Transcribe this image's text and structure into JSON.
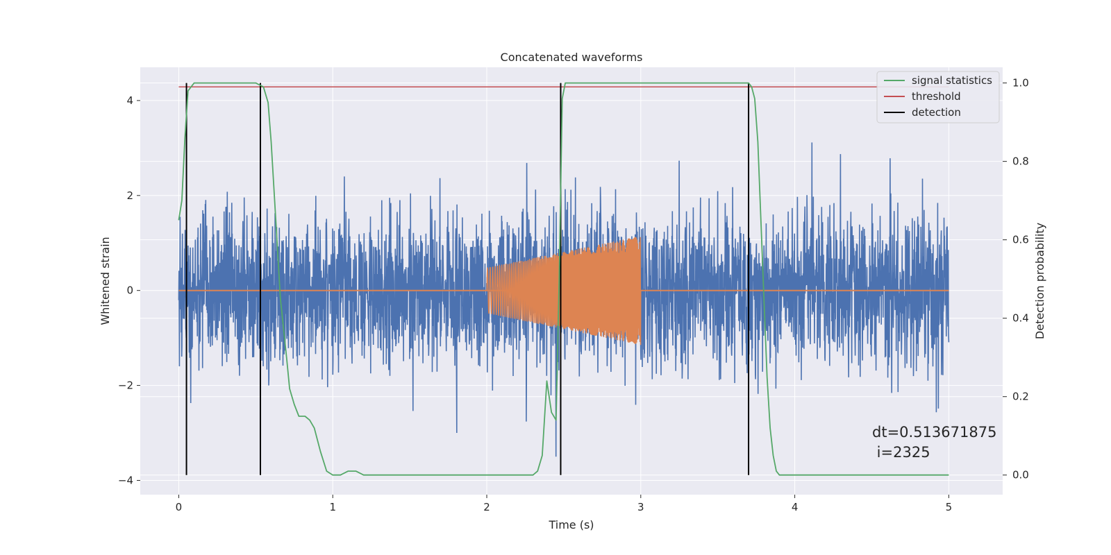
{
  "chart_data": {
    "type": "line",
    "title": "Concatenated waveforms",
    "xlabel": "Time (s)",
    "ylabel": "Whitened strain",
    "y2label": "Detection probability",
    "xlim": [
      -0.25,
      5.35
    ],
    "ylim": [
      -4.3,
      4.7
    ],
    "y2lim": [
      -0.05,
      1.04
    ],
    "x_ticks": [
      0,
      1,
      2,
      3,
      4,
      5
    ],
    "y_ticks": [
      -4,
      -2,
      0,
      2,
      4
    ],
    "y2_ticks": [
      0.0,
      0.2,
      0.4,
      0.6,
      0.8,
      1.0
    ],
    "x_tick_labels": [
      "0",
      "1",
      "2",
      "3",
      "4",
      "5"
    ],
    "y_tick_labels": [
      "−4",
      "−2",
      "0",
      "2",
      "4"
    ],
    "y2_tick_labels": [
      "0.0",
      "0.2",
      "0.4",
      "0.6",
      "0.8",
      "1.0"
    ],
    "grid": true,
    "legend_position": "top-right",
    "colors": {
      "noise": "#4c72b0",
      "injection": "#dd8452",
      "signal_statistics": "#55a868",
      "threshold": "#c44e52",
      "detection": "#000000",
      "background": "#eaeaf2",
      "grid": "#ffffff"
    },
    "series": [
      {
        "name": "signal statistics",
        "axis": "right",
        "x": [
          0.0,
          0.02,
          0.04,
          0.06,
          0.1,
          0.15,
          0.3,
          0.5,
          0.55,
          0.58,
          0.6,
          0.63,
          0.66,
          0.7,
          0.72,
          0.75,
          0.78,
          0.82,
          0.85,
          0.88,
          0.92,
          0.96,
          1.0,
          1.05,
          1.1,
          1.15,
          1.2,
          1.3,
          1.5,
          2.0,
          2.3,
          2.33,
          2.36,
          2.39,
          2.42,
          2.45,
          2.47,
          2.49,
          2.51,
          2.53,
          2.55,
          2.7,
          3.0,
          3.4,
          3.7,
          3.72,
          3.74,
          3.76,
          3.78,
          3.8,
          3.82,
          3.84,
          3.86,
          3.88,
          3.9,
          4.0,
          4.3,
          4.6,
          5.0
        ],
        "y": [
          0.65,
          0.7,
          0.86,
          0.98,
          1.0,
          1.0,
          1.0,
          1.0,
          0.99,
          0.95,
          0.85,
          0.65,
          0.45,
          0.3,
          0.22,
          0.18,
          0.15,
          0.15,
          0.14,
          0.12,
          0.06,
          0.01,
          0.0,
          0.0,
          0.01,
          0.01,
          0.0,
          0.0,
          0.0,
          0.0,
          0.0,
          0.01,
          0.05,
          0.24,
          0.16,
          0.14,
          0.5,
          0.96,
          1.0,
          1.0,
          1.0,
          1.0,
          1.0,
          1.0,
          1.0,
          0.99,
          0.96,
          0.85,
          0.65,
          0.45,
          0.25,
          0.12,
          0.05,
          0.01,
          0.0,
          0.0,
          0.0,
          0.0,
          0.0
        ]
      },
      {
        "name": "threshold",
        "axis": "right",
        "x": [
          0.0,
          5.0
        ],
        "y": [
          0.99,
          0.99
        ]
      },
      {
        "name": "detection",
        "axis": "right",
        "x": [
          0.05,
          0.53,
          2.48,
          3.7
        ],
        "y_range": [
          0.0,
          1.0
        ]
      }
    ],
    "noise_envelope": {
      "x_range": [
        0.0,
        5.0
      ],
      "y_range": [
        -3.5,
        3.4
      ]
    },
    "injection": {
      "x_range": [
        2.0,
        3.0
      ],
      "amplitude_start": 0.48,
      "amplitude_end": 1.15
    },
    "annotation": {
      "line1": "dt=0.513671875",
      "line2": " i=2325"
    }
  }
}
